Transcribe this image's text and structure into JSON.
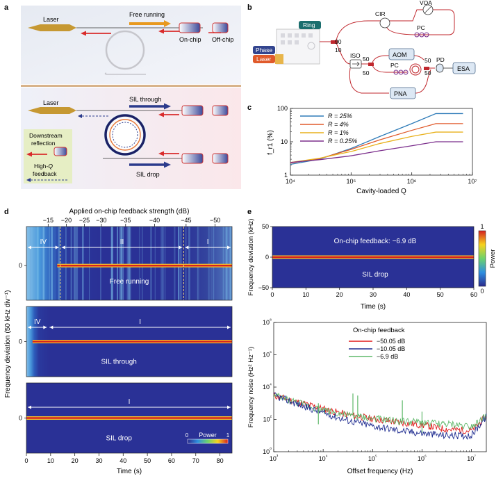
{
  "panel_labels": {
    "a": "a",
    "b": "b",
    "c": "c",
    "d": "d",
    "e": "e"
  },
  "panel_a": {
    "top": {
      "laser": "Laser",
      "free_running": "Free running",
      "on_chip": "On-chip",
      "off_chip": "Off-chip"
    },
    "bottom": {
      "laser": "Laser",
      "sil_through": "SIL through",
      "sil_drop": "SIL drop",
      "downstream_reflection_1": "Downstream",
      "downstream_reflection_2": "reflection",
      "high_q_1": "High-",
      "high_q_2": "Q",
      "high_q_3": "feedback"
    },
    "colors": {
      "laser": "#c69832",
      "forward": "#e8991f",
      "backward": "#d92b2b",
      "sil": "#2b3a8c",
      "ring": "#c8c8d0",
      "dark_ring": "#1b2266"
    }
  },
  "panel_b": {
    "ring": "Ring",
    "phase": "Phase",
    "laser": "Laser",
    "split_90": "90",
    "split_10": "10",
    "cir": "CIR",
    "voa": "VOA",
    "pc_top": "PC",
    "iso": "ISO",
    "aom": "AOM",
    "pc_mid": "PC",
    "pd": "PD",
    "esa": "ESA",
    "pna": "PNA",
    "s50a": "50",
    "s50b": "50",
    "s50c": "50",
    "s50d": "50"
  },
  "chart_data": [
    {
      "id": "c",
      "type": "line",
      "xscale": "log",
      "yscale": "log",
      "xlim": [
        10000,
        10000000
      ],
      "ylim": [
        1,
        100
      ],
      "xlabel": "Cavity-loaded Q",
      "ylabel": "f_r1 (%)",
      "xticks": [
        "10⁴",
        "10⁵",
        "10⁶",
        "10⁷"
      ],
      "yticks": [
        "1",
        "10",
        "100"
      ],
      "series": [
        {
          "name": "R = 25%",
          "color": "#2e7bb8",
          "x": [
            10000,
            30000,
            100000,
            300000,
            1000000,
            2500000,
            7000000
          ],
          "y": [
            2.1,
            3.0,
            6.3,
            14.5,
            35,
            70,
            70
          ]
        },
        {
          "name": "R = 4%",
          "color": "#e05a2b",
          "x": [
            10000,
            30000,
            100000,
            300000,
            1000000,
            2500000,
            7000000
          ],
          "y": [
            2.3,
            3.1,
            5.9,
            11.5,
            22,
            35,
            35
          ]
        },
        {
          "name": "R = 1%",
          "color": "#e8b11c",
          "x": [
            10000,
            30000,
            100000,
            300000,
            1000000,
            2500000,
            7000000
          ],
          "y": [
            2.4,
            3.2,
            5.1,
            8.9,
            14.5,
            19.5,
            19.5
          ]
        },
        {
          "name": "R =  0.25%",
          "color": "#7b2e8c",
          "x": [
            10000,
            30000,
            100000,
            300000,
            1000000,
            2500000,
            7000000
          ],
          "y": [
            2.4,
            2.9,
            3.8,
            5.4,
            7.6,
            10,
            10
          ]
        }
      ]
    },
    {
      "id": "d",
      "type": "heatmap",
      "title": "Applied on-chip feedback strength (dB)",
      "top_ticks": [
        "−15",
        "−20",
        "−25",
        "−30",
        "−35",
        "−40",
        "−45",
        "−50"
      ],
      "top_tick_times": [
        9,
        16.5,
        24,
        31,
        41,
        53,
        66,
        78
      ],
      "xlabel": "Time (s)",
      "ylabel": "Frequency deviation (50 kHz div⁻¹)",
      "xlim": [
        0,
        85
      ],
      "xticks": [
        "0",
        "10",
        "20",
        "30",
        "40",
        "50",
        "60",
        "70",
        "80"
      ],
      "ytick": "0",
      "colorbar": {
        "label": "Power",
        "min": "0",
        "max": "1"
      },
      "rows": [
        {
          "name": "Free running",
          "regions": [
            {
              "label": "IV",
              "from": 0,
              "to": 14
            },
            {
              "label": "II",
              "from": 14,
              "to": 65
            },
            {
              "label": "I",
              "from": 65,
              "to": 85
            }
          ]
        },
        {
          "name": "SIL through",
          "regions": [
            {
              "label": "IV",
              "from": 0,
              "to": 9
            },
            {
              "label": "I",
              "from": 9,
              "to": 85
            }
          ]
        },
        {
          "name": "SIL drop",
          "regions": [
            {
              "label": "I",
              "from": 0,
              "to": 85
            }
          ]
        }
      ]
    },
    {
      "id": "e_top",
      "type": "heatmap",
      "annotation": "On-chip feedback: −6.9 dB",
      "name": "SIL drop",
      "xlabel": "Time (s)",
      "ylabel": "Frequency deviation (kHz)",
      "xlim": [
        0,
        60
      ],
      "ylim": [
        -50,
        50
      ],
      "xticks": [
        "0",
        "10",
        "20",
        "30",
        "40",
        "50",
        "60"
      ],
      "yticks": [
        "50",
        "0",
        "−50"
      ],
      "colorbar": {
        "label": "Power",
        "min": "0",
        "max": "1"
      }
    },
    {
      "id": "e_bottom",
      "type": "line",
      "xscale": "log",
      "yscale": "log",
      "xlim": [
        1000,
        20000000
      ],
      "ylim": [
        1,
        100000000
      ],
      "xlabel": "Offset frequency (Hz)",
      "ylabel": "Frequency noise (Hz² Hz⁻¹)",
      "xticks": [
        "10³",
        "10⁴",
        "10⁵",
        "10⁶",
        "10⁷"
      ],
      "yticks": [
        "10⁰",
        "10²",
        "10⁴",
        "10⁶",
        "10⁸"
      ],
      "legend_title": "On-chip feedback",
      "series": [
        {
          "name": "−50.05 dB",
          "color": "#e01818",
          "x": [
            1000,
            3000,
            10000,
            30000,
            100000,
            300000,
            1000000,
            3000000,
            10000000,
            20000000
          ],
          "y": [
            3000,
            1200,
            450,
            200,
            110,
            70,
            45,
            25,
            20,
            150
          ]
        },
        {
          "name": "−10.05 dB",
          "color": "#1d2a8f",
          "x": [
            1000,
            3000,
            10000,
            30000,
            100000,
            300000,
            1000000,
            3000000,
            10000000,
            20000000
          ],
          "y": [
            3000,
            900,
            250,
            90,
            40,
            22,
            14,
            10,
            10,
            150
          ]
        },
        {
          "name": "−6.9 dB",
          "color": "#5fb86a",
          "x": [
            1000,
            3000,
            10000,
            30000,
            100000,
            300000,
            1000000,
            3000000,
            10000000,
            20000000
          ],
          "y": [
            3000,
            1100,
            380,
            180,
            110,
            80,
            65,
            50,
            40,
            150
          ]
        }
      ],
      "spurs": [
        {
          "x": 8000,
          "y": 1000
        },
        {
          "x": 40000,
          "y": 4000
        },
        {
          "x": 50000,
          "y": 3000
        },
        {
          "x": 400000,
          "y": 1500
        },
        {
          "x": 1000000,
          "y": 300
        }
      ]
    }
  ]
}
